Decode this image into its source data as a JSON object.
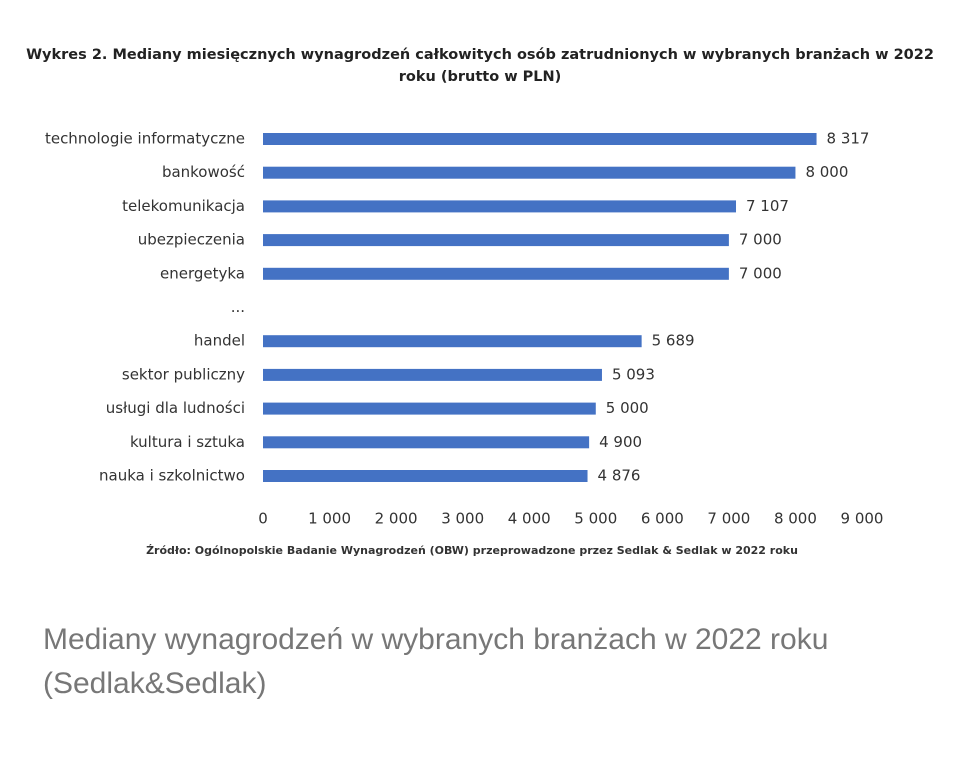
{
  "chart_data": {
    "type": "barh",
    "title": "Wykres 2. Mediany miesięcznych wynagrodzeń całkowitych osób zatrudnionych w wybranych branżach w 2022 roku (brutto w PLN)",
    "categories": [
      "technologie informatyczne",
      "bankowość",
      "telekomunikacja",
      "ubezpieczenia",
      "energetyka",
      "...",
      "handel",
      "sektor publiczny",
      "usługi dla ludności",
      "kultura i sztuka",
      "nauka i szkolnictwo"
    ],
    "values": [
      8317,
      8000,
      7107,
      7000,
      7000,
      null,
      5689,
      5093,
      5000,
      4900,
      4876
    ],
    "value_labels": [
      "8 317",
      "8 000",
      "7 107",
      "7 000",
      "7 000",
      null,
      "5 689",
      "5 093",
      "5 000",
      "4 900",
      "4 876"
    ],
    "color": "#4472c4",
    "xlim": [
      0,
      9000
    ],
    "xticks": [
      0,
      {
        "value": 1000,
        "label": "1 000"
      },
      {
        "value": 2000,
        "label": "2 000"
      },
      {
        "value": 3000,
        "label": "3 000"
      },
      {
        "value": 4000,
        "label": "4 000"
      },
      {
        "value": 5000,
        "label": "5 000"
      },
      {
        "value": 6000,
        "label": "6 000"
      },
      {
        "value": 7000,
        "label": "7 000"
      },
      {
        "value": 8000,
        "label": "8 000"
      },
      {
        "value": 9000,
        "label": "9 000"
      }
    ],
    "grid": false,
    "source": "Źródło: Ogólnopolskie Badanie Wynagrodzeń (OBW) przeprowadzone przez Sedlak & Sedlak w 2022 roku"
  },
  "caption": "Mediany wynagrodzeń w wybranych branżach w 2022 roku (Sedlak&Sedlak)"
}
